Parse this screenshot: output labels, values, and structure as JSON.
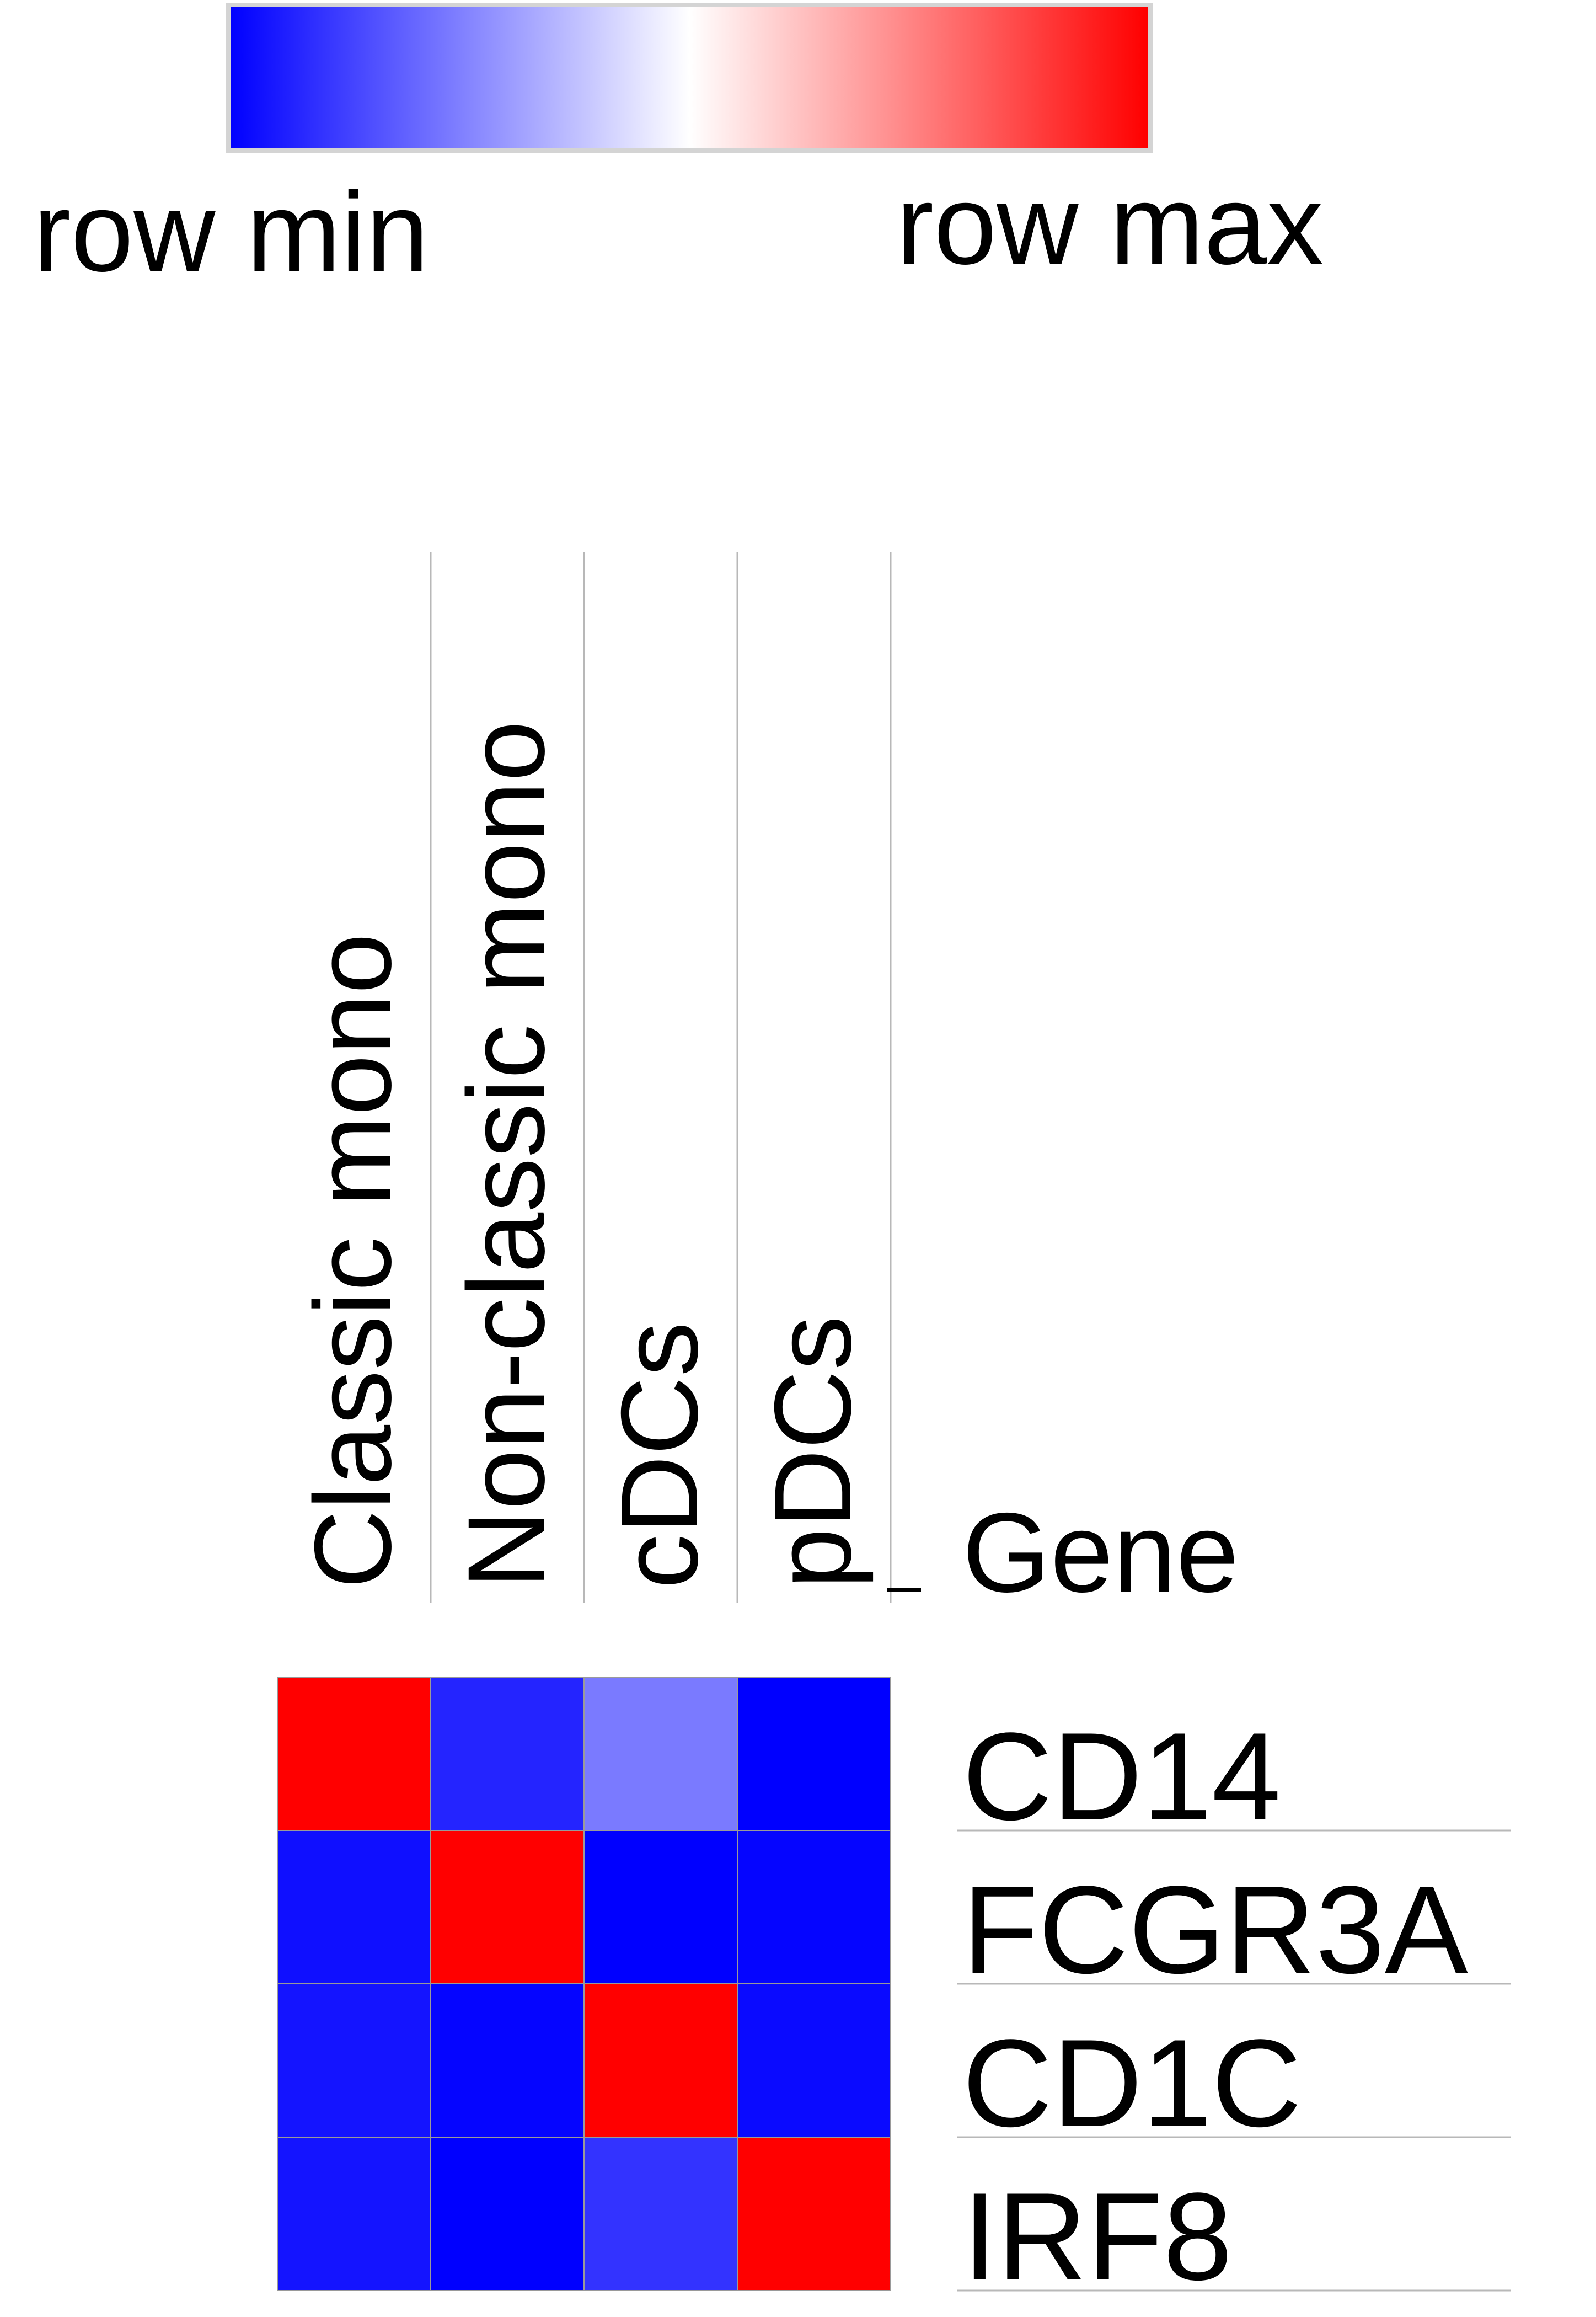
{
  "legend": {
    "min_label": "row min",
    "max_label": "row max",
    "colors": [
      "#0000ff",
      "#ffffff",
      "#ff0000"
    ]
  },
  "chart_data": {
    "type": "heatmap",
    "title": "",
    "row_header": "Gene",
    "columns": [
      "Classic mono",
      "Non-classic mono",
      "cDCs",
      "pDCs"
    ],
    "rows": [
      "CD14",
      "FCGR3A",
      "CD1C",
      "IRF8"
    ],
    "values": [
      [
        1.0,
        0.07,
        0.24,
        0.0
      ],
      [
        0.03,
        1.0,
        0.0,
        0.01
      ],
      [
        0.04,
        0.01,
        1.0,
        0.02
      ],
      [
        0.04,
        0.0,
        0.1,
        1.0
      ]
    ],
    "value_range": [
      0,
      1
    ],
    "color_scale": "row min (blue) - white - row max (red)"
  }
}
